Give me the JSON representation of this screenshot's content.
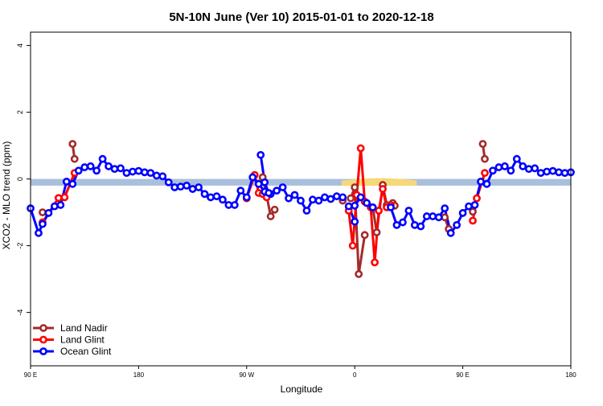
{
  "chart_data": {
    "type": "line",
    "title": "5N-10N June (Ver 10)   2015-01-01 to 2020-12-18",
    "xlabel": "Longitude",
    "ylabel": "XCO2 - MLO trend (ppm)",
    "xlim": [
      -90,
      180
    ],
    "ylim": [
      -5.6,
      4.4
    ],
    "x_ticks": [
      {
        "value": -90,
        "label": "90 E"
      },
      {
        "value": -36,
        "label": "180"
      },
      {
        "value": 18,
        "label": "90 W"
      },
      {
        "value": 72,
        "label": "0"
      },
      {
        "value": 126,
        "label": "90 E"
      },
      {
        "value": 180,
        "label": "180"
      }
    ],
    "y_ticks": [
      4,
      2,
      0,
      -2,
      -4
    ],
    "legend_position": "bottom-left",
    "band": {
      "y_low": -0.2,
      "y_high": 0.0,
      "color": "#a9bfdc"
    },
    "highlight_color": "#f7d778",
    "highlights": [
      {
        "x_from": 65.4,
        "x_to": 103.0
      }
    ],
    "series": [
      {
        "name": "Land Nadir",
        "color": "#a52a2a",
        "segments": [
          [
            [
              -84,
              -1.0
            ]
          ],
          [
            [
              -69,
              1.05
            ],
            [
              -68,
              0.6
            ]
          ],
          [
            [
              26,
              0.05
            ],
            [
              28,
              -0.5
            ],
            [
              30,
              -1.12
            ],
            [
              32,
              -0.92
            ]
          ],
          [
            [
              66,
              -0.65
            ]
          ],
          [
            [
              70,
              -0.58
            ],
            [
              72,
              -0.25
            ],
            [
              74,
              -2.85
            ],
            [
              77,
              -1.68
            ]
          ],
          [
            [
              81,
              -0.85
            ],
            [
              83,
              -1.6
            ],
            [
              86,
              -0.18
            ],
            [
              88,
              -0.78
            ]
          ],
          [
            [
              91,
              -0.72
            ],
            [
              92,
              -0.8
            ]
          ],
          [
            [
              117,
              -1.15
            ],
            [
              119,
              -1.5
            ]
          ],
          [
            [
              131,
              -0.98
            ]
          ],
          [
            [
              136,
              1.05
            ],
            [
              137,
              0.6
            ]
          ]
        ]
      },
      {
        "name": "Land Glint",
        "color": "#ff0000",
        "segments": [
          [
            [
              -84,
              -1.3
            ],
            [
              -76,
              -0.57
            ],
            [
              -73,
              -0.55
            ],
            [
              -68,
              0.18
            ]
          ],
          [
            [
              18,
              -0.58
            ],
            [
              22,
              0.12
            ],
            [
              24,
              -0.42
            ],
            [
              26,
              -0.45
            ],
            [
              28,
              -0.55
            ]
          ],
          [
            [
              69,
              -0.95
            ],
            [
              71,
              -2.0
            ],
            [
              73,
              -0.48
            ],
            [
              75,
              0.92
            ],
            [
              77,
              -0.68
            ],
            [
              80,
              -0.85
            ],
            [
              82,
              -2.5
            ],
            [
              84,
              -0.95
            ],
            [
              86,
              -0.3
            ],
            [
              88,
              -0.85
            ],
            [
              90,
              -0.78
            ]
          ],
          [
            [
              131,
              -1.25
            ],
            [
              133,
              -0.58
            ],
            [
              137,
              0.18
            ]
          ]
        ]
      },
      {
        "name": "Ocean Glint",
        "color": "#0000ff",
        "segments": [
          [
            [
              -90,
              -0.88
            ],
            [
              -86,
              -1.62
            ],
            [
              -84,
              -1.35
            ],
            [
              -81,
              -1.02
            ],
            [
              -78,
              -0.82
            ],
            [
              -75,
              -0.78
            ],
            [
              -72,
              -0.08
            ],
            [
              -69,
              -0.15
            ],
            [
              -66,
              0.25
            ],
            [
              -63,
              0.35
            ],
            [
              -60,
              0.38
            ],
            [
              -57,
              0.25
            ],
            [
              -54,
              0.6
            ],
            [
              -51,
              0.38
            ],
            [
              -48,
              0.3
            ],
            [
              -45,
              0.32
            ],
            [
              -42,
              0.18
            ],
            [
              -39,
              0.22
            ],
            [
              -36,
              0.24
            ],
            [
              -33,
              0.2
            ],
            [
              -30,
              0.18
            ],
            [
              -27,
              0.1
            ],
            [
              -24,
              0.08
            ],
            [
              -21,
              -0.1
            ],
            [
              -18,
              -0.25
            ],
            [
              -15,
              -0.23
            ],
            [
              -12,
              -0.2
            ],
            [
              -9,
              -0.3
            ],
            [
              -6,
              -0.25
            ],
            [
              -3,
              -0.45
            ],
            [
              0,
              -0.55
            ],
            [
              3,
              -0.52
            ],
            [
              6,
              -0.62
            ],
            [
              9,
              -0.78
            ],
            [
              12,
              -0.78
            ],
            [
              15,
              -0.35
            ],
            [
              18,
              -0.55
            ],
            [
              21,
              0.05
            ],
            [
              24,
              -0.15
            ],
            [
              27,
              -0.38
            ],
            [
              30,
              -0.45
            ],
            [
              33,
              -0.35
            ],
            [
              36,
              -0.25
            ],
            [
              39,
              -0.58
            ],
            [
              42,
              -0.48
            ],
            [
              45,
              -0.65
            ],
            [
              48,
              -0.95
            ],
            [
              51,
              -0.62
            ],
            [
              54,
              -0.65
            ],
            [
              57,
              -0.55
            ],
            [
              60,
              -0.6
            ],
            [
              63,
              -0.52
            ],
            [
              66,
              -0.55
            ]
          ],
          [
            [
              25,
              0.72
            ],
            [
              27,
              -0.1
            ],
            [
              29,
              -0.42
            ]
          ],
          [
            [
              69,
              -0.82
            ],
            [
              72,
              -1.28
            ]
          ],
          [
            [
              72,
              -0.8
            ],
            [
              75,
              -0.55
            ],
            [
              78,
              -0.72
            ],
            [
              81,
              -0.85
            ]
          ],
          [
            [
              90,
              -0.85
            ],
            [
              93,
              -1.38
            ],
            [
              96,
              -1.3
            ],
            [
              99,
              -0.95
            ],
            [
              102,
              -1.38
            ],
            [
              105,
              -1.42
            ],
            [
              108,
              -1.12
            ],
            [
              111,
              -1.12
            ],
            [
              114,
              -1.15
            ],
            [
              117,
              -0.88
            ],
            [
              120,
              -1.62
            ],
            [
              123,
              -1.38
            ],
            [
              126,
              -1.02
            ],
            [
              129,
              -0.82
            ],
            [
              132,
              -0.78
            ],
            [
              135,
              -0.08
            ],
            [
              138,
              -0.15
            ],
            [
              141,
              0.25
            ],
            [
              144,
              0.35
            ],
            [
              147,
              0.38
            ],
            [
              150,
              0.25
            ],
            [
              153,
              0.6
            ],
            [
              156,
              0.38
            ],
            [
              159,
              0.3
            ],
            [
              162,
              0.32
            ],
            [
              165,
              0.18
            ],
            [
              168,
              0.22
            ],
            [
              171,
              0.24
            ],
            [
              174,
              0.2
            ],
            [
              177,
              0.18
            ],
            [
              180,
              0.2
            ]
          ]
        ]
      }
    ]
  }
}
